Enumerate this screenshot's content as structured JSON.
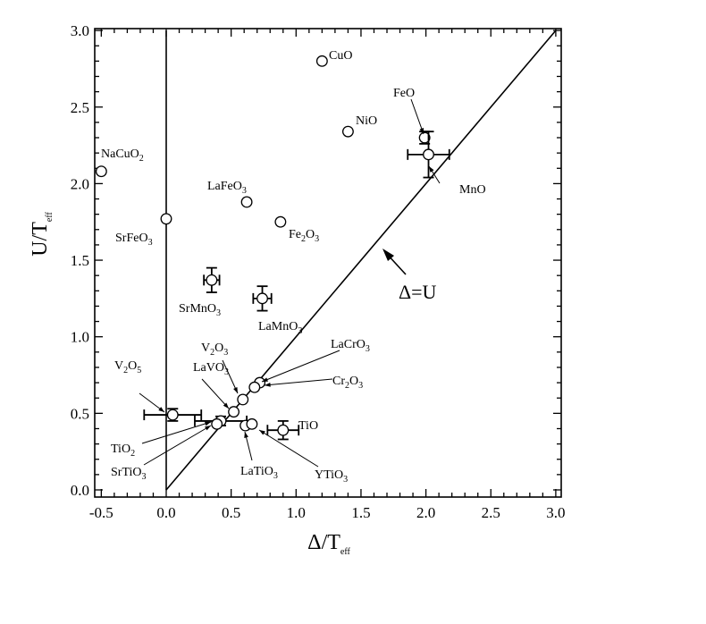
{
  "chart_data": {
    "type": "scatter",
    "xlabel": {
      "main": "Δ/T",
      "sub": "eff"
    },
    "ylabel": {
      "main": "U/T",
      "sub": "eff"
    },
    "xlim": [
      -0.55,
      3.05
    ],
    "ylim": [
      -0.02,
      3.02
    ],
    "xticks": [
      -0.5,
      0.0,
      0.5,
      1.0,
      1.5,
      2.0,
      2.5,
      3.0
    ],
    "xtick_labels": [
      "-0.5",
      "0.0",
      "0.5",
      "1.0",
      "1.5",
      "2.0",
      "2.5",
      "3.0"
    ],
    "yticks": [
      0.0,
      0.5,
      1.0,
      1.5,
      2.0,
      2.5,
      3.0
    ],
    "ytick_labels": [
      "0.0",
      "0.5",
      "1.0",
      "1.5",
      "2.0",
      "2.5",
      "3.0"
    ],
    "grid": false,
    "legend": "none",
    "reference_lines": [
      {
        "id": "delta-equals-u",
        "label": "Δ=U",
        "from": [
          0.0,
          0.0
        ],
        "to": [
          3.0,
          3.0
        ]
      },
      {
        "id": "delta-zero",
        "label": "",
        "from": [
          0.0,
          0.0
        ],
        "to": [
          0.0,
          3.0
        ]
      }
    ],
    "points": [
      {
        "main": "CuO",
        "x": 1.2,
        "y": 2.8
      },
      {
        "main": "NiO",
        "x": 1.4,
        "y": 2.34
      },
      {
        "main": "FeO",
        "x": 1.99,
        "y": 2.3,
        "yerr": 0.04
      },
      {
        "main": "MnO",
        "x": 2.02,
        "y": 2.19,
        "xerr": 0.16,
        "yerr": 0.15
      },
      {
        "main": "NaCuO",
        "sub": "2",
        "x": -0.5,
        "y": 2.08
      },
      {
        "main": "LaFeO",
        "sub": "3",
        "x": 0.62,
        "y": 1.88
      },
      {
        "main": "SrFeO",
        "sub": "3",
        "x": 0.0,
        "y": 1.77
      },
      {
        "main": "Fe",
        "sub": "2",
        "main2": "O",
        "sub2": "3",
        "x": 0.88,
        "y": 1.75
      },
      {
        "main": "SrMnO",
        "sub": "3",
        "x": 0.35,
        "y": 1.37,
        "xerr": 0.06,
        "yerr": 0.08
      },
      {
        "main": "LaMnO",
        "sub": "3",
        "x": 0.74,
        "y": 1.25,
        "xerr": 0.07,
        "yerr": 0.08
      },
      {
        "main": "V",
        "sub": "2",
        "main2": "O",
        "sub2": "3",
        "x": 0.59,
        "y": 0.59
      },
      {
        "main": "LaCrO",
        "sub": "3",
        "x": 0.72,
        "y": 0.7
      },
      {
        "main": "Cr",
        "sub": "2",
        "main2": "O",
        "sub2": "3",
        "x": 0.68,
        "y": 0.67
      },
      {
        "main": "LaVO",
        "sub": "3",
        "x": 0.52,
        "y": 0.51
      },
      {
        "main": "V",
        "sub": "2",
        "main2": "O",
        "sub2": "5",
        "x": 0.05,
        "y": 0.49,
        "xerr": 0.22,
        "yerr": 0.04
      },
      {
        "main": "TiO",
        "x": 0.9,
        "y": 0.39,
        "xerr": 0.12,
        "yerr": 0.06
      },
      {
        "main": "TiO",
        "sub": "2",
        "x": 0.42,
        "y": 0.45,
        "xerr": 0.2,
        "yerr": 0.03
      },
      {
        "main": "SrTiO",
        "sub": "3",
        "x": 0.39,
        "y": 0.43
      },
      {
        "main": "LaTiO",
        "sub": "3",
        "x": 0.61,
        "y": 0.42
      },
      {
        "main": "YTiO",
        "sub": "3",
        "x": 0.66,
        "y": 0.43
      }
    ]
  }
}
